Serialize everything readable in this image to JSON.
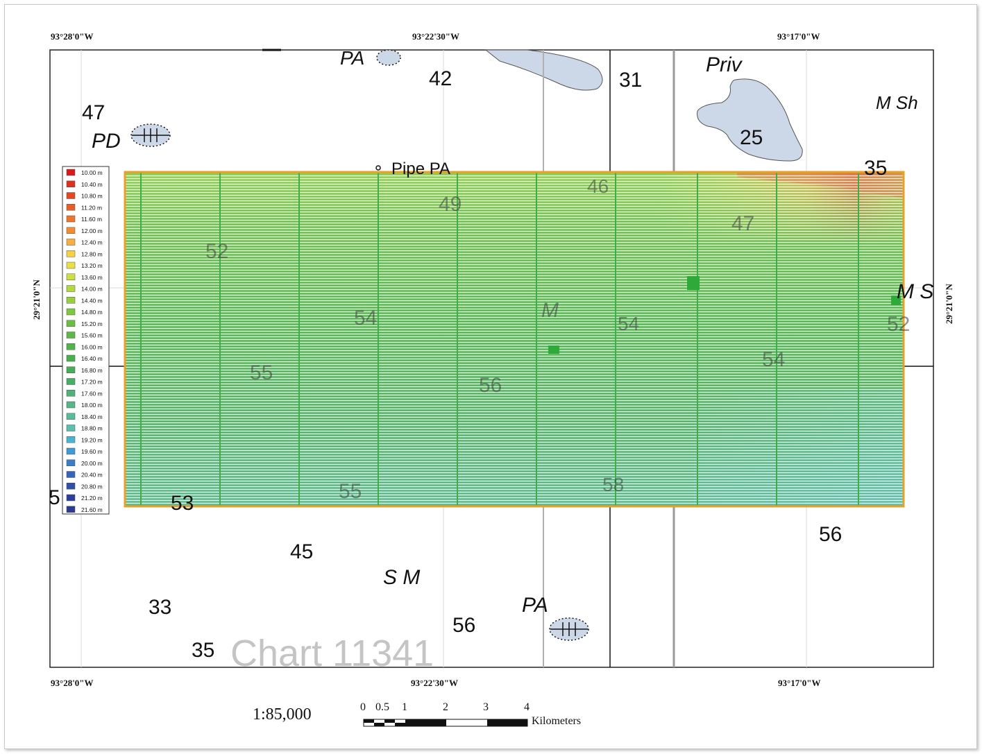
{
  "coordinates": {
    "top": [
      "93°28'0\"W",
      "93°22'30\"W",
      "93°17'0\"W"
    ],
    "bottom": [
      "93°28'0\"W",
      "93°22'30\"W",
      "93°17'0\"W"
    ],
    "left": "29°21'0\"N",
    "right": "29°21'0\"N"
  },
  "legend": {
    "entries": [
      {
        "label": "10.00 m",
        "color": "#d7191c"
      },
      {
        "label": "10.40 m",
        "color": "#dc3020"
      },
      {
        "label": "10.80 m",
        "color": "#e14825"
      },
      {
        "label": "11.20 m",
        "color": "#e65f2a"
      },
      {
        "label": "11.60 m",
        "color": "#eb762f"
      },
      {
        "label": "12.00 m",
        "color": "#f08d34"
      },
      {
        "label": "12.40 m",
        "color": "#f5b041"
      },
      {
        "label": "12.80 m",
        "color": "#f7d04a"
      },
      {
        "label": "13.20 m",
        "color": "#e8df45"
      },
      {
        "label": "13.60 m",
        "color": "#cde042"
      },
      {
        "label": "14.00 m",
        "color": "#b3d940"
      },
      {
        "label": "14.40 m",
        "color": "#98cf3e"
      },
      {
        "label": "14.80 m",
        "color": "#80c63e"
      },
      {
        "label": "15.20 m",
        "color": "#6cbe43"
      },
      {
        "label": "15.60 m",
        "color": "#5cb947"
      },
      {
        "label": "16.00 m",
        "color": "#50b44a"
      },
      {
        "label": "16.40 m",
        "color": "#49b04f"
      },
      {
        "label": "16.80 m",
        "color": "#46ad58"
      },
      {
        "label": "17.20 m",
        "color": "#48ae66"
      },
      {
        "label": "17.60 m",
        "color": "#4fb276"
      },
      {
        "label": "18.00 m",
        "color": "#56b687"
      },
      {
        "label": "18.40 m",
        "color": "#5abb98"
      },
      {
        "label": "18.80 m",
        "color": "#5ac0ad"
      },
      {
        "label": "19.20 m",
        "color": "#4ab4d0"
      },
      {
        "label": "19.60 m",
        "color": "#3f9bd2"
      },
      {
        "label": "20.00 m",
        "color": "#3a7ec8"
      },
      {
        "label": "20.40 m",
        "color": "#3565b8"
      },
      {
        "label": "20.80 m",
        "color": "#3050a8"
      },
      {
        "label": "21.20 m",
        "color": "#2b3f9a"
      },
      {
        "label": "21.60 m",
        "color": "#2c3a90"
      }
    ]
  },
  "chart_labels": {
    "soundings": [
      "47",
      "42",
      "31",
      "25",
      "35",
      "49",
      "46",
      "47",
      "52",
      "54",
      "54",
      "52",
      "55",
      "56",
      "54",
      "55",
      "58",
      "53",
      "5",
      "56",
      "45",
      "33",
      "56",
      "35"
    ],
    "notes": [
      "PA",
      "Priv",
      "M Sh",
      "PD",
      "Pipe PA",
      "M",
      "M S",
      "S M",
      "PA"
    ],
    "chart_title": "Chart 11341"
  },
  "scale": {
    "ratio": "1:85,000",
    "ticks": [
      "0",
      "0.5",
      "1",
      "2",
      "3",
      "4"
    ],
    "unit": "Kilometers"
  },
  "colors": {
    "water": "#ccd7e8",
    "survey_border": "#e8a02a",
    "survey_lines": "#3fae48"
  }
}
